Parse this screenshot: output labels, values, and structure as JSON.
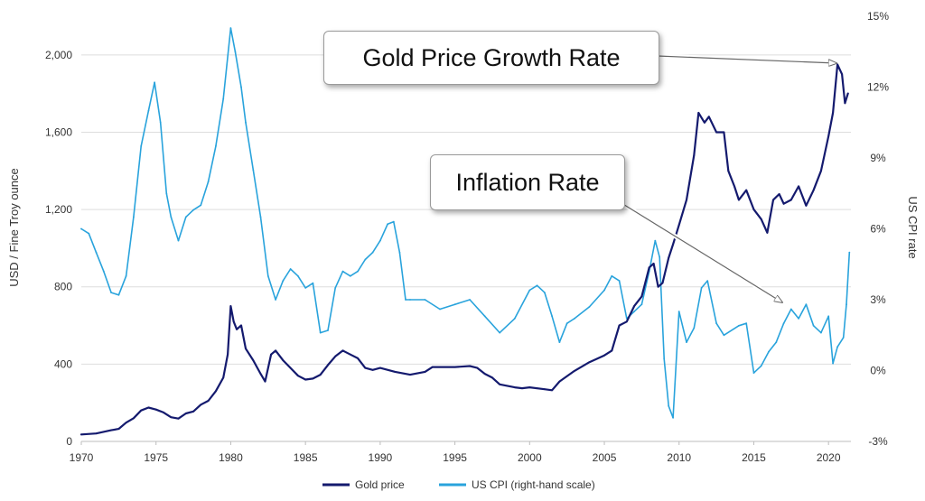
{
  "chart_data": {
    "type": "line",
    "title": "",
    "xlabel": "",
    "ylabel": "USD / Fine Troy ounce",
    "ylabel_right": "US CPI rate",
    "xlim": [
      1970,
      2021.5
    ],
    "ylim": [
      0,
      2200
    ],
    "ylim_right": [
      -3,
      15
    ],
    "x_ticks": [
      "1970",
      "1975",
      "1980",
      "1985",
      "1990",
      "1995",
      "2000",
      "2005",
      "2010",
      "2015",
      "2020"
    ],
    "y_ticks": [
      "0",
      "400",
      "800",
      "1,200",
      "1,600",
      "2,000"
    ],
    "y_right_ticks": [
      "-3%",
      "0%",
      "3%",
      "6%",
      "9%",
      "12%",
      "15%"
    ],
    "grid": "horizontal",
    "legend_position": "bottom",
    "series": [
      {
        "name": "Gold price",
        "axis": "left",
        "color": "#141a6e",
        "x": [
          1970,
          1971,
          1972,
          1972.5,
          1973,
          1973.5,
          1974,
          1974.5,
          1975,
          1975.5,
          1976,
          1976.5,
          1977,
          1977.5,
          1978,
          1978.5,
          1979,
          1979.5,
          1979.8,
          1980.0,
          1980.2,
          1980.4,
          1980.7,
          1981,
          1981.5,
          1982,
          1982.3,
          1982.7,
          1983,
          1983.5,
          1984,
          1984.5,
          1985,
          1985.5,
          1986,
          1986.5,
          1987,
          1987.5,
          1988,
          1988.5,
          1989,
          1989.5,
          1990,
          1991,
          1992,
          1993,
          1993.5,
          1994,
          1995,
          1996,
          1996.5,
          1997,
          1997.5,
          1998,
          1999,
          1999.5,
          2000,
          2001,
          2001.5,
          2002,
          2003,
          2004,
          2005,
          2005.5,
          2006,
          2006.5,
          2007,
          2007.5,
          2008,
          2008.3,
          2008.6,
          2008.9,
          2009.3,
          2009.6,
          2010,
          2010.5,
          2011,
          2011.3,
          2011.7,
          2012,
          2012.5,
          2013,
          2013.3,
          2013.7,
          2014,
          2014.5,
          2015,
          2015.5,
          2015.9,
          2016.3,
          2016.7,
          2017,
          2017.5,
          2018,
          2018.5,
          2019,
          2019.5,
          2020,
          2020.3,
          2020.6,
          2020.9,
          2021.1,
          2021.3
        ],
        "values": [
          36,
          41,
          58,
          65,
          97,
          120,
          160,
          175,
          165,
          150,
          125,
          118,
          145,
          155,
          190,
          210,
          260,
          330,
          450,
          700,
          620,
          580,
          600,
          480,
          420,
          350,
          310,
          450,
          470,
          420,
          380,
          340,
          320,
          325,
          345,
          395,
          440,
          470,
          450,
          430,
          380,
          370,
          380,
          360,
          345,
          360,
          385,
          385,
          385,
          390,
          380,
          350,
          330,
          295,
          280,
          275,
          280,
          270,
          265,
          310,
          365,
          410,
          445,
          470,
          600,
          620,
          700,
          750,
          900,
          920,
          800,
          820,
          950,
          1020,
          1120,
          1250,
          1480,
          1700,
          1650,
          1680,
          1600,
          1600,
          1400,
          1320,
          1250,
          1300,
          1200,
          1150,
          1080,
          1250,
          1280,
          1230,
          1250,
          1320,
          1220,
          1300,
          1400,
          1580,
          1700,
          1950,
          1900,
          1750,
          1800
        ]
      },
      {
        "name": "US CPI (right-hand scale)",
        "axis": "right",
        "color": "#29a3dc",
        "x": [
          1970,
          1970.5,
          1971,
          1971.5,
          1972,
          1972.5,
          1973,
          1973.5,
          1974,
          1974.5,
          1974.9,
          1975.3,
          1975.7,
          1976,
          1976.5,
          1977,
          1977.5,
          1978,
          1978.5,
          1979,
          1979.5,
          1980.0,
          1980.3,
          1980.7,
          1981,
          1981.5,
          1982,
          1982.5,
          1983,
          1983.5,
          1984,
          1984.5,
          1985,
          1985.5,
          1986,
          1986.5,
          1987,
          1987.5,
          1988,
          1988.5,
          1989,
          1989.5,
          1990,
          1990.5,
          1990.9,
          1991.3,
          1991.7,
          1992,
          1993,
          1994,
          1995,
          1996,
          1997,
          1998,
          1999,
          2000,
          2000.5,
          2001,
          2001.5,
          2002,
          2002.5,
          2003,
          2004,
          2005,
          2005.5,
          2006,
          2006.5,
          2007,
          2007.5,
          2008,
          2008.4,
          2008.7,
          2009,
          2009.3,
          2009.6,
          2010,
          2010.5,
          2011,
          2011.5,
          2011.9,
          2012.5,
          2013,
          2014,
          2014.5,
          2015,
          2015.5,
          2016,
          2016.5,
          2017,
          2017.5,
          2018,
          2018.5,
          2019,
          2019.5,
          2020,
          2020.3,
          2020.6,
          2021,
          2021.2,
          2021.4
        ],
        "values": [
          6.0,
          5.8,
          5.0,
          4.2,
          3.3,
          3.2,
          4.0,
          6.5,
          9.5,
          11.0,
          12.2,
          10.5,
          7.5,
          6.5,
          5.5,
          6.5,
          6.8,
          7.0,
          8.0,
          9.5,
          11.5,
          14.5,
          13.5,
          12.0,
          10.5,
          8.5,
          6.5,
          4.0,
          3.0,
          3.8,
          4.3,
          4.0,
          3.5,
          3.7,
          1.6,
          1.7,
          3.5,
          4.2,
          4.0,
          4.2,
          4.7,
          5.0,
          5.5,
          6.2,
          6.3,
          5.0,
          3.0,
          3.0,
          3.0,
          2.6,
          2.8,
          3.0,
          2.3,
          1.6,
          2.2,
          3.4,
          3.6,
          3.3,
          2.3,
          1.2,
          2.0,
          2.2,
          2.7,
          3.4,
          4.0,
          3.8,
          2.2,
          2.5,
          2.8,
          4.2,
          5.5,
          4.8,
          0.5,
          -1.5,
          -2.0,
          2.5,
          1.2,
          1.8,
          3.5,
          3.8,
          2.0,
          1.5,
          1.9,
          2.0,
          -0.1,
          0.2,
          0.8,
          1.2,
          2.0,
          2.6,
          2.2,
          2.8,
          1.9,
          1.6,
          2.3,
          0.3,
          1.0,
          1.4,
          2.8,
          5.0
        ]
      }
    ]
  },
  "annotations": {
    "gold_callout": "Gold Price Growth Rate",
    "inflation_callout": "Inflation Rate"
  },
  "legend": {
    "gold_label": "Gold price",
    "cpi_label": "US CPI (right-hand scale)"
  }
}
